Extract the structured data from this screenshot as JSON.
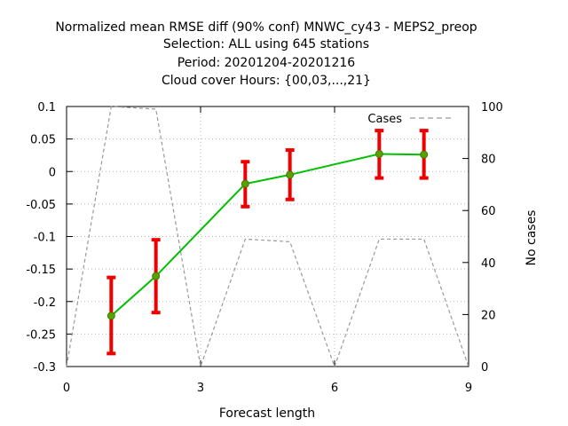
{
  "chart_data": {
    "type": "line",
    "title_lines": [
      "Normalized mean RMSE diff (90% conf) MNWC_cy43 - MEPS2_preop",
      "Selection: ALL using   645 stations",
      "Period: 20201204-20201216",
      "Cloud cover   Hours: {00,03,...,21}"
    ],
    "xlabel": "Forecast length",
    "ylabel_right": "No cases",
    "xlim": [
      0,
      9
    ],
    "ylim": [
      -0.3,
      0.1
    ],
    "y2lim": [
      0,
      100
    ],
    "x_ticks": [
      "0",
      "3",
      "6",
      "9"
    ],
    "y_ticks": [
      "0.1",
      "0.05",
      "0",
      "-0.05",
      "-0.1",
      "-0.15",
      "-0.2",
      "-0.25",
      "-0.3"
    ],
    "y2_ticks": [
      "100",
      "80",
      "60",
      "40",
      "20",
      "0"
    ],
    "grid": true,
    "legend_position": "top-right",
    "series": [
      {
        "kind": "errorbar-line",
        "color": "#00c000",
        "errorbar_color": "#ee0000",
        "x": [
          1,
          2,
          4,
          5,
          7,
          8
        ],
        "y": [
          -0.222,
          -0.161,
          -0.019,
          -0.005,
          0.027,
          0.026
        ],
        "y_low": [
          -0.28,
          -0.217,
          -0.054,
          -0.043,
          -0.01,
          -0.01
        ],
        "y_high": [
          -0.163,
          -0.105,
          0.015,
          0.033,
          0.063,
          0.063
        ]
      },
      {
        "name": "Cases",
        "kind": "dashed-line",
        "axis": "right",
        "color": "#999999",
        "x": [
          0,
          1,
          2,
          3,
          4,
          5,
          6,
          7,
          8,
          9
        ],
        "y": [
          0,
          100,
          99,
          0,
          49,
          48,
          0,
          49,
          49,
          0
        ]
      }
    ]
  }
}
